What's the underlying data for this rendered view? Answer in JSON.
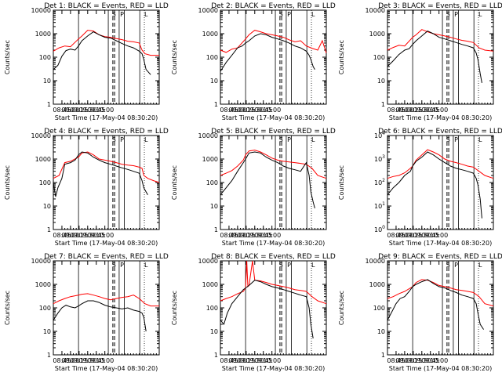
{
  "figure": {
    "y_axis_label": "Counts/sec",
    "x_axis_label": "Start Time (17-May-04 08:30:20)",
    "x_tick_labels": [
      "08:45",
      "09:00",
      "09:15",
      "09:30",
      "09:45",
      "10:00"
    ],
    "vertical_markers": {
      "solid_minutes": [
        44,
        96,
        115,
        124,
        151
      ],
      "dashed_minutes": [
        104,
        107
      ],
      "dotted_minutes": [
        159
      ]
    },
    "region_tick_labels": [
      "S",
      "P",
      "L"
    ]
  },
  "colors": {
    "events": "#000000",
    "lld": "#ff0000"
  },
  "chart_data": [
    {
      "type": "line",
      "title": "Det 1: BLACK = Events, RED = LLD",
      "ylim": [
        1,
        10000
      ],
      "yscale": "log",
      "ytick_style": "decimal",
      "xlim_minutes": [
        0,
        185
      ],
      "series": [
        {
          "name": "Events",
          "color": "#000000",
          "x": [
            0,
            8,
            15,
            22,
            30,
            38,
            44,
            50,
            60,
            70,
            80,
            90,
            100,
            110,
            120,
            130,
            140,
            150,
            155,
            158,
            162,
            170
          ],
          "y": [
            30,
            45,
            110,
            190,
            220,
            200,
            300,
            500,
            800,
            1200,
            900,
            700,
            650,
            500,
            380,
            300,
            250,
            180,
            140,
            80,
            30,
            18
          ]
        },
        {
          "name": "LLD",
          "color": "#ff0000",
          "x": [
            0,
            10,
            20,
            30,
            44,
            50,
            60,
            70,
            80,
            90,
            100,
            110,
            120,
            130,
            140,
            150,
            155,
            160,
            170,
            185
          ],
          "y": [
            180,
            250,
            300,
            280,
            600,
            800,
            1400,
            1300,
            900,
            750,
            700,
            620,
            560,
            480,
            450,
            400,
            200,
            140,
            120,
            120
          ]
        }
      ]
    },
    {
      "type": "line",
      "title": "Det 2: BLACK = Events, RED = LLD",
      "ylim": [
        1,
        10000
      ],
      "yscale": "log",
      "ytick_style": "decimal",
      "xlim_minutes": [
        0,
        185
      ],
      "series": [
        {
          "name": "Events",
          "color": "#000000",
          "x": [
            0,
            10,
            20,
            30,
            38,
            44,
            50,
            60,
            70,
            80,
            90,
            100,
            110,
            120,
            130,
            140,
            150,
            155,
            158,
            162,
            165
          ],
          "y": [
            25,
            60,
            120,
            250,
            300,
            400,
            500,
            800,
            1000,
            900,
            700,
            600,
            500,
            400,
            300,
            250,
            180,
            120,
            80,
            40,
            30
          ]
        },
        {
          "name": "LLD",
          "color": "#ff0000",
          "x": [
            0,
            10,
            20,
            30,
            44,
            50,
            60,
            70,
            80,
            90,
            100,
            110,
            120,
            130,
            140,
            150,
            160,
            170,
            178,
            185
          ],
          "y": [
            200,
            160,
            220,
            250,
            600,
            900,
            1400,
            1200,
            1000,
            900,
            800,
            700,
            550,
            450,
            500,
            300,
            240,
            200,
            500,
            150
          ]
        }
      ]
    },
    {
      "type": "line",
      "title": "Det 3: BLACK = Events, RED = LLD",
      "ylim": [
        1,
        10000
      ],
      "yscale": "log",
      "ytick_style": "decimal",
      "xlim_minutes": [
        0,
        185
      ],
      "series": [
        {
          "name": "Events",
          "color": "#000000",
          "x": [
            0,
            10,
            20,
            30,
            38,
            44,
            50,
            60,
            70,
            80,
            90,
            100,
            110,
            120,
            130,
            140,
            150,
            155,
            158,
            162,
            165
          ],
          "y": [
            40,
            70,
            130,
            200,
            230,
            350,
            500,
            800,
            1300,
            1000,
            700,
            600,
            500,
            420,
            350,
            300,
            250,
            150,
            80,
            20,
            8
          ]
        },
        {
          "name": "LLD",
          "color": "#ff0000",
          "x": [
            0,
            10,
            20,
            30,
            44,
            50,
            60,
            70,
            80,
            90,
            100,
            110,
            120,
            130,
            140,
            150,
            160,
            170,
            185
          ],
          "y": [
            200,
            260,
            320,
            300,
            700,
            900,
            1500,
            1200,
            1000,
            900,
            800,
            700,
            600,
            520,
            480,
            420,
            250,
            200,
            180
          ]
        }
      ]
    },
    {
      "type": "line",
      "title": "Det 4: BLACK = Events, RED = LLD",
      "ylim": [
        1,
        10000
      ],
      "yscale": "log",
      "ytick_style": "decimal",
      "xlim_minutes": [
        0,
        185
      ],
      "series": [
        {
          "name": "Events",
          "color": "#000000",
          "x": [
            0,
            4,
            8,
            15,
            20,
            30,
            38,
            44,
            50,
            60,
            70,
            80,
            90,
            100,
            110,
            120,
            130,
            140,
            150,
            155,
            158,
            162,
            165
          ],
          "y": [
            100,
            25,
            60,
            150,
            600,
            700,
            900,
            1500,
            2000,
            1800,
            1200,
            900,
            700,
            600,
            500,
            420,
            360,
            300,
            250,
            120,
            60,
            40,
            30
          ]
        },
        {
          "name": "LLD",
          "color": "#ff0000",
          "x": [
            0,
            10,
            20,
            30,
            44,
            50,
            60,
            70,
            80,
            90,
            100,
            110,
            120,
            130,
            140,
            150,
            155,
            158,
            165,
            175,
            185
          ],
          "y": [
            150,
            200,
            700,
            800,
            1200,
            1800,
            2000,
            1500,
            1000,
            900,
            800,
            700,
            600,
            550,
            520,
            450,
            400,
            200,
            150,
            120,
            100
          ]
        }
      ]
    },
    {
      "type": "line",
      "title": "Det 5: BLACK = Events, RED = LLD",
      "ylim": [
        1,
        10000
      ],
      "yscale": "log",
      "ytick_style": "decimal",
      "xlim_minutes": [
        0,
        185
      ],
      "series": [
        {
          "name": "Events",
          "color": "#000000",
          "x": [
            0,
            10,
            20,
            30,
            40,
            44,
            50,
            60,
            70,
            80,
            90,
            100,
            110,
            120,
            130,
            140,
            150,
            155,
            158,
            162,
            165
          ],
          "y": [
            30,
            60,
            120,
            300,
            700,
            1000,
            1800,
            2000,
            1800,
            1200,
            900,
            700,
            500,
            400,
            350,
            300,
            700,
            200,
            40,
            15,
            8
          ]
        },
        {
          "name": "LLD",
          "color": "#ff0000",
          "x": [
            0,
            10,
            20,
            30,
            40,
            44,
            50,
            60,
            70,
            80,
            90,
            100,
            110,
            120,
            130,
            140,
            150,
            160,
            170,
            185
          ],
          "y": [
            200,
            250,
            320,
            500,
            900,
            1500,
            2200,
            2400,
            2000,
            1500,
            1100,
            900,
            800,
            750,
            700,
            650,
            600,
            400,
            200,
            150
          ]
        }
      ]
    },
    {
      "type": "line",
      "title": "Det 6: BLACK = Events, RED = LLD",
      "ylim": [
        1,
        10000
      ],
      "yscale": "log",
      "ytick_style": "power",
      "xlim_minutes": [
        0,
        185
      ],
      "series": [
        {
          "name": "Events",
          "color": "#000000",
          "x": [
            0,
            10,
            20,
            30,
            40,
            44,
            50,
            60,
            70,
            80,
            90,
            100,
            110,
            120,
            130,
            140,
            150,
            155,
            158,
            162,
            165
          ],
          "y": [
            30,
            60,
            100,
            200,
            300,
            500,
            800,
            1200,
            2000,
            1500,
            1000,
            700,
            500,
            400,
            350,
            300,
            250,
            150,
            80,
            20,
            3
          ]
        },
        {
          "name": "LLD",
          "color": "#ff0000",
          "x": [
            0,
            10,
            20,
            30,
            40,
            44,
            50,
            60,
            70,
            80,
            90,
            100,
            110,
            120,
            130,
            140,
            150,
            160,
            170,
            185
          ],
          "y": [
            150,
            180,
            200,
            260,
            400,
            500,
            900,
            1500,
            2500,
            2000,
            1500,
            1000,
            800,
            700,
            600,
            500,
            450,
            300,
            200,
            150
          ]
        }
      ]
    },
    {
      "type": "line",
      "title": "Det 7: BLACK = Events, RED = LLD",
      "ylim": [
        1,
        10000
      ],
      "yscale": "log",
      "ytick_style": "decimal",
      "xlim_minutes": [
        0,
        185
      ],
      "series": [
        {
          "name": "Events",
          "color": "#000000",
          "x": [
            0,
            8,
            15,
            22,
            30,
            38,
            44,
            50,
            60,
            70,
            80,
            90,
            100,
            110,
            120,
            130,
            140,
            150,
            155,
            158,
            162
          ],
          "y": [
            30,
            60,
            100,
            130,
            110,
            100,
            120,
            150,
            200,
            200,
            170,
            130,
            110,
            100,
            90,
            100,
            80,
            70,
            60,
            40,
            10
          ]
        },
        {
          "name": "LLD",
          "color": "#ff0000",
          "x": [
            0,
            10,
            20,
            30,
            44,
            50,
            60,
            70,
            80,
            90,
            100,
            110,
            120,
            130,
            140,
            150,
            160,
            170,
            185
          ],
          "y": [
            150,
            200,
            250,
            300,
            350,
            380,
            400,
            350,
            300,
            250,
            220,
            250,
            280,
            300,
            350,
            250,
            150,
            120,
            120
          ]
        }
      ]
    },
    {
      "type": "line",
      "title": "Det 8: BLACK = Events, RED = LLD",
      "ylim": [
        1,
        10000
      ],
      "yscale": "log",
      "ytick_style": "decimal",
      "xlim_minutes": [
        0,
        185
      ],
      "series": [
        {
          "name": "Events",
          "color": "#000000",
          "x": [
            0,
            6,
            12,
            20,
            30,
            40,
            44,
            50,
            60,
            70,
            80,
            90,
            100,
            110,
            120,
            130,
            140,
            150,
            155,
            158,
            162
          ],
          "y": [
            30,
            20,
            60,
            150,
            300,
            600,
            700,
            900,
            1500,
            1300,
            1000,
            800,
            700,
            600,
            500,
            420,
            350,
            300,
            100,
            20,
            5
          ]
        },
        {
          "name": "LLD",
          "color": "#ff0000",
          "x": [
            0,
            10,
            20,
            30,
            40,
            44,
            46,
            48,
            50,
            56,
            60,
            70,
            80,
            90,
            100,
            110,
            120,
            130,
            140,
            150,
            160,
            170,
            185
          ],
          "y": [
            200,
            250,
            300,
            400,
            500,
            700,
            10000,
            800,
            900,
            10000,
            1500,
            1400,
            1200,
            1000,
            900,
            800,
            700,
            600,
            550,
            500,
            300,
            200,
            150
          ]
        }
      ]
    },
    {
      "type": "line",
      "title": "Det 9: BLACK = Events, RED = LLD",
      "ylim": [
        1,
        10000
      ],
      "yscale": "log",
      "ytick_style": "decimal",
      "xlim_minutes": [
        0,
        185
      ],
      "series": [
        {
          "name": "Events",
          "color": "#000000",
          "x": [
            0,
            8,
            15,
            22,
            30,
            38,
            44,
            50,
            60,
            70,
            80,
            90,
            100,
            110,
            120,
            130,
            140,
            150,
            155,
            158,
            162,
            168
          ],
          "y": [
            30,
            70,
            150,
            250,
            300,
            500,
            800,
            1000,
            1300,
            1600,
            1100,
            800,
            700,
            550,
            450,
            350,
            300,
            250,
            150,
            60,
            20,
            12
          ]
        },
        {
          "name": "LLD",
          "color": "#ff0000",
          "x": [
            0,
            10,
            20,
            30,
            44,
            50,
            60,
            70,
            80,
            90,
            100,
            110,
            120,
            130,
            140,
            150,
            160,
            170,
            185
          ],
          "y": [
            250,
            300,
            400,
            500,
            800,
            1200,
            1600,
            1500,
            1200,
            900,
            800,
            700,
            600,
            550,
            500,
            450,
            300,
            150,
            120
          ]
        }
      ]
    }
  ]
}
